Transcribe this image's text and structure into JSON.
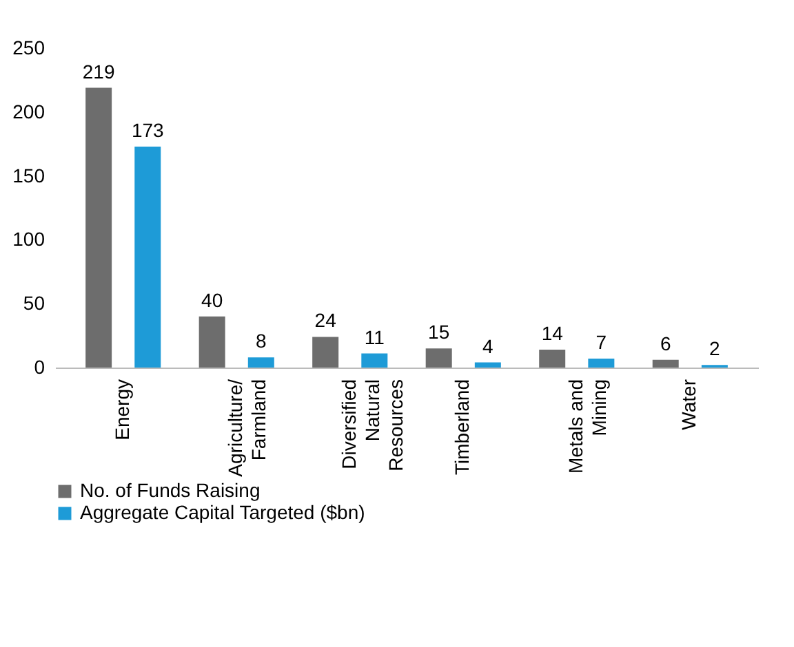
{
  "chart_data": {
    "type": "bar",
    "categories": [
      "Energy",
      "Agriculture/ Farmland",
      "Diversified Natural Resources",
      "Timberland",
      "Metals and Mining",
      "Water"
    ],
    "series": [
      {
        "name": "No. of Funds Raising",
        "color": "#6d6d6d",
        "values": [
          219,
          40,
          24,
          15,
          14,
          6
        ]
      },
      {
        "name": "Aggregate Capital Targeted ($bn)",
        "color": "#1e9bd7",
        "values": [
          173,
          8,
          11,
          4,
          7,
          2
        ]
      }
    ],
    "ylim": [
      0,
      250
    ],
    "yticks": [
      0,
      50,
      100,
      150,
      200,
      250
    ],
    "grid": false,
    "legend": "bottom",
    "data_labels": true
  }
}
